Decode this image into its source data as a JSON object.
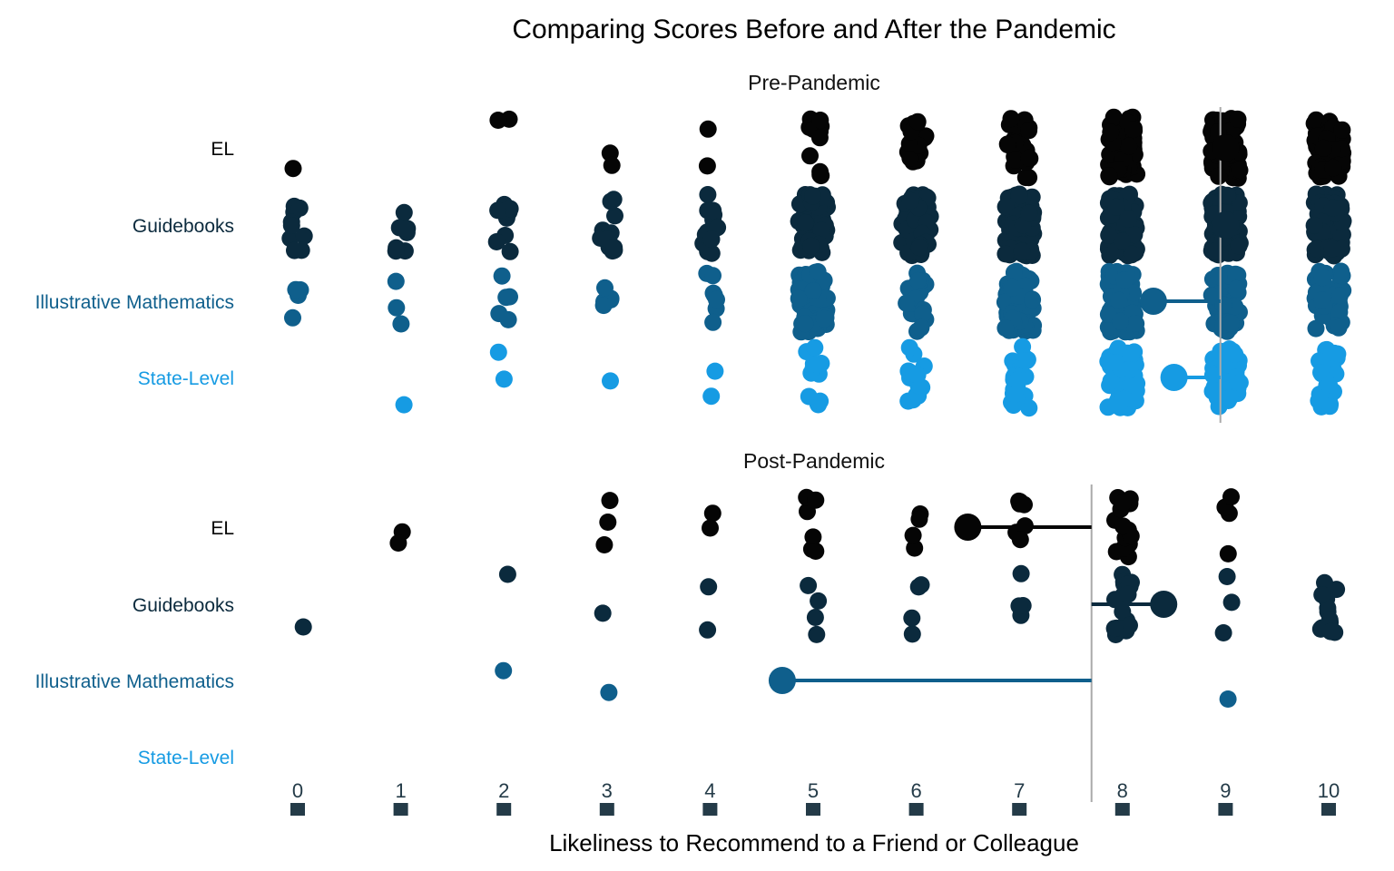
{
  "chart_data": {
    "type": "scatter",
    "title": "Comparing Scores Before and After the Pandemic",
    "xlabel": "Likeliness to Recommend to a Friend or Colleague",
    "x_ticks": [
      "0",
      "1",
      "2",
      "3",
      "4",
      "5",
      "6",
      "7",
      "8",
      "9",
      "10"
    ],
    "xlim": [
      0,
      10
    ],
    "categories": [
      "EL",
      "Guidebooks",
      "Illustrative Mathematics",
      "State-Level"
    ],
    "colors": {
      "EL": "#050505",
      "Guidebooks": "#0b2a3d",
      "Illustrative Mathematics": "#0f5f8c",
      "State-Level": "#169be3",
      "reference_line": "#aaaaaa",
      "tick_text": "#243b48"
    },
    "panels": [
      {
        "title": "Pre-Pandemic",
        "overall_mean": 8.95,
        "groups": [
          {
            "name": "EL",
            "mean": 9,
            "counts": [
              1,
              0,
              2,
              2,
              2,
              12,
              18,
              30,
              60,
              80,
              55
            ]
          },
          {
            "name": "Guidebooks",
            "mean": 9,
            "counts": [
              9,
              8,
              9,
              12,
              12,
              70,
              65,
              80,
              100,
              90,
              70
            ]
          },
          {
            "name": "Illustrative Mathematics",
            "mean": 8.3,
            "counts": [
              4,
              3,
              5,
              5,
              7,
              60,
              20,
              60,
              90,
              60,
              40
            ]
          },
          {
            "name": "State-Level",
            "mean": 8.5,
            "counts": [
              0,
              1,
              2,
              1,
              2,
              12,
              14,
              25,
              55,
              45,
              25
            ]
          }
        ]
      },
      {
        "title": "Post-Pandemic",
        "overall_mean": 7.7,
        "groups": [
          {
            "name": "EL",
            "mean": 6.5,
            "counts": [
              0,
              2,
              0,
              3,
              2,
              6,
              4,
              7,
              15,
              4,
              0
            ]
          },
          {
            "name": "Guidebooks",
            "mean": 8.4,
            "counts": [
              1,
              0,
              1,
              1,
              2,
              4,
              4,
              4,
              18,
              3,
              12
            ]
          },
          {
            "name": "Illustrative Mathematics",
            "mean": 4.7,
            "counts": [
              0,
              0,
              1,
              1,
              0,
              0,
              0,
              0,
              0,
              1,
              0
            ]
          },
          {
            "name": "State-Level",
            "mean": null,
            "counts": [
              0,
              0,
              0,
              0,
              0,
              0,
              0,
              0,
              0,
              0,
              0
            ]
          }
        ]
      }
    ]
  }
}
